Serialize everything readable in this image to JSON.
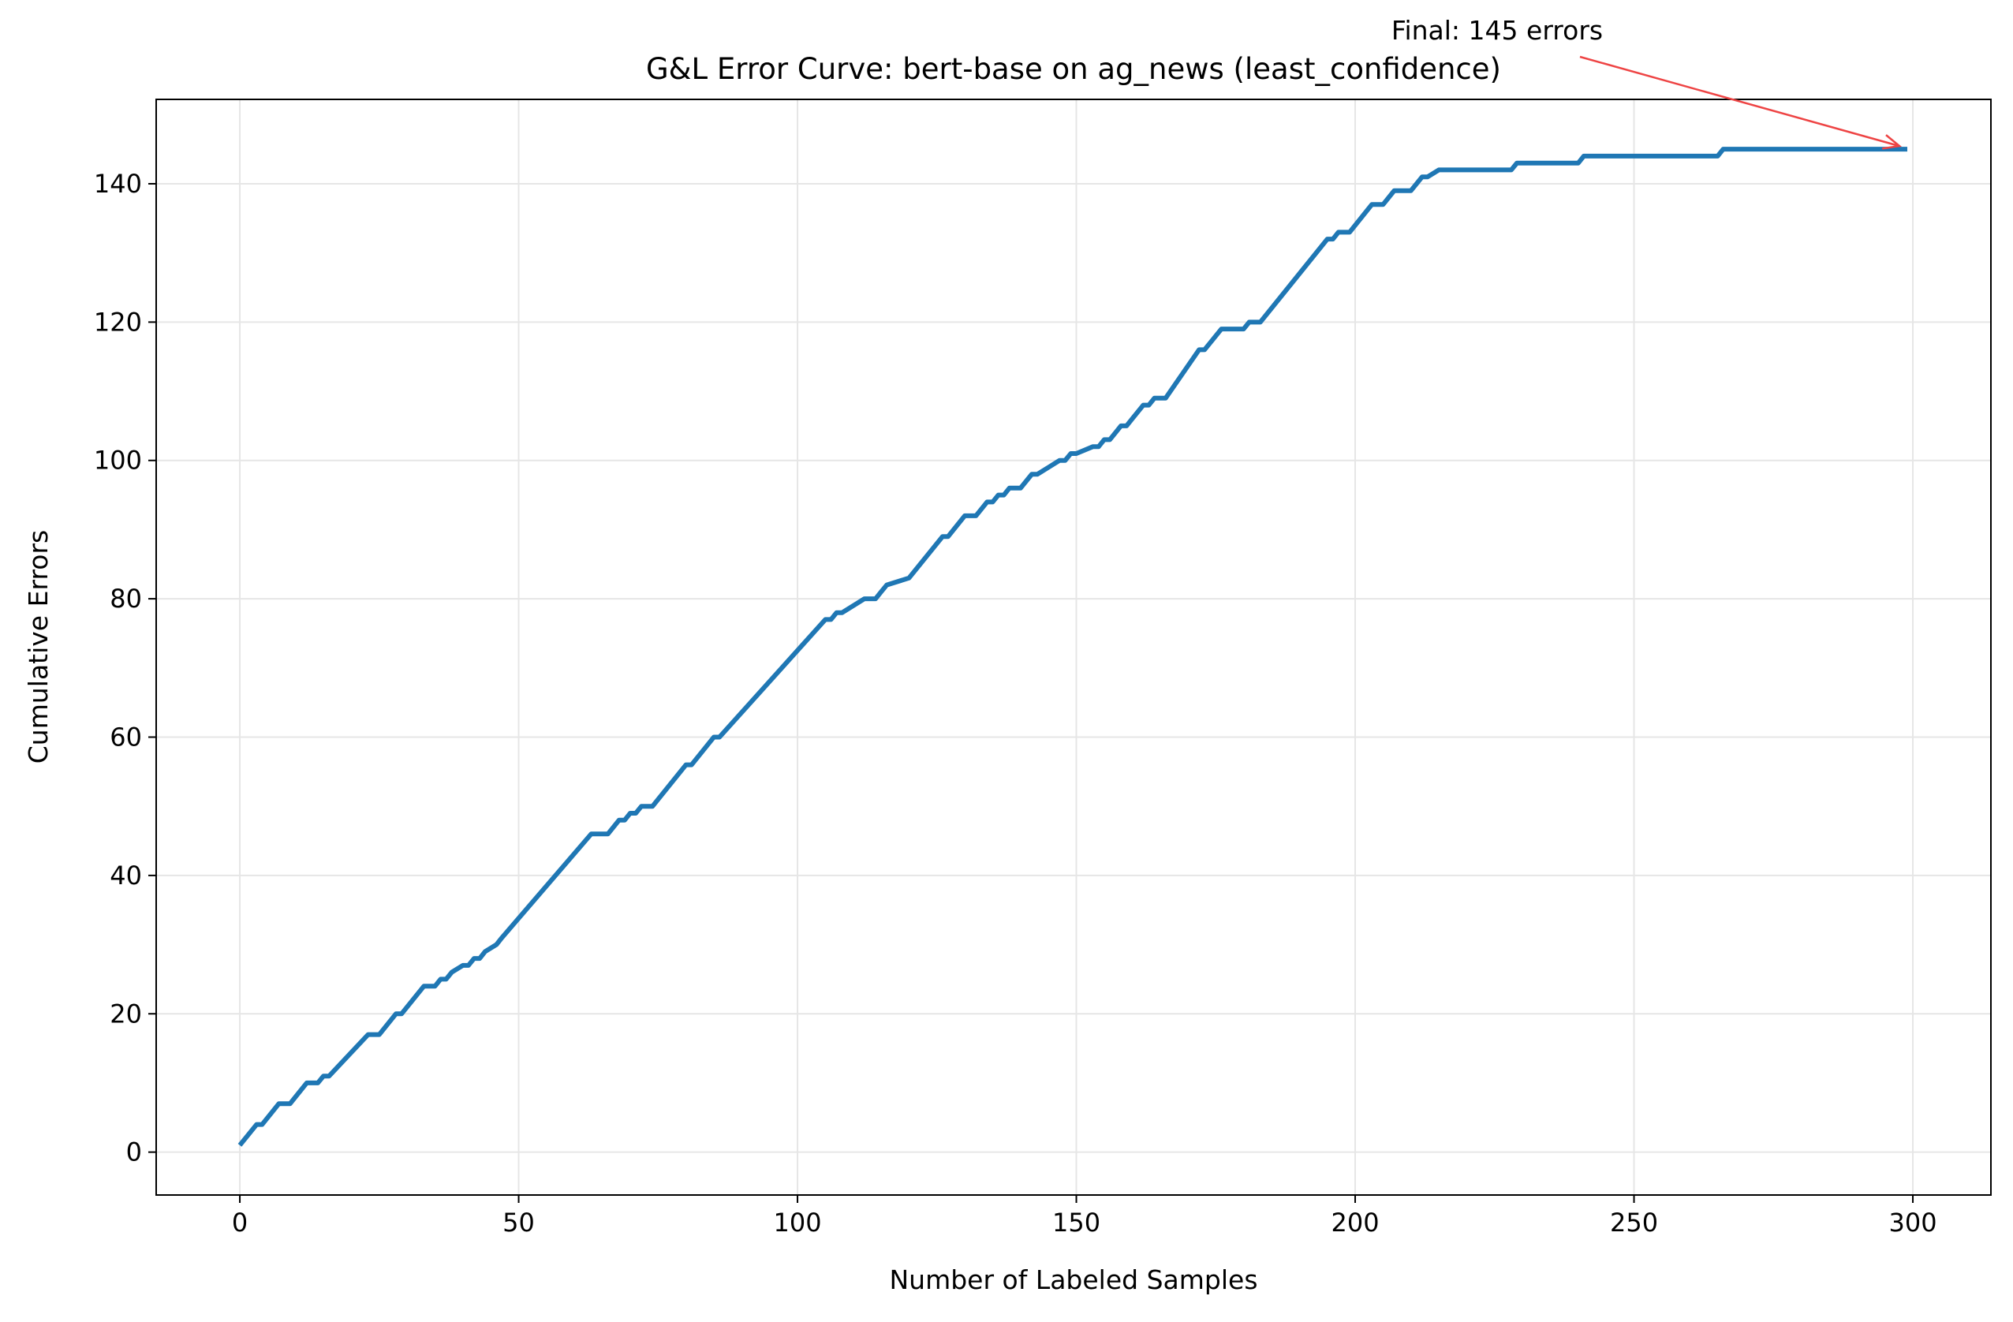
{
  "chart_data": {
    "type": "line",
    "title": "G&L Error Curve: bert-base on ag_news (least_confidence)",
    "xlabel": "Number of Labeled Samples",
    "ylabel": "Cumulative Errors",
    "xlim": [
      -15,
      314
    ],
    "ylim": [
      -6.2,
      152.2
    ],
    "xticks": [
      0,
      50,
      100,
      150,
      200,
      250,
      300
    ],
    "yticks": [
      0,
      20,
      40,
      60,
      80,
      100,
      120,
      140
    ],
    "xtick_labels": [
      "0",
      "50",
      "100",
      "150",
      "200",
      "250",
      "300"
    ],
    "ytick_labels": [
      "0",
      "20",
      "40",
      "60",
      "80",
      "100",
      "120",
      "140"
    ],
    "grid": true,
    "series": [
      {
        "color": "#1f77b4",
        "x": [
          0,
          3,
          4,
          7,
          8,
          9,
          10,
          12,
          14,
          15,
          16,
          23,
          24,
          25,
          28,
          29,
          33,
          34,
          35,
          36,
          37,
          38,
          40,
          41,
          42,
          43,
          44,
          46,
          47,
          63,
          66,
          68,
          69,
          70,
          71,
          72,
          74,
          80,
          81,
          85,
          86,
          105,
          106,
          107,
          108,
          112,
          114,
          115,
          116,
          120,
          126,
          127,
          130,
          132,
          134,
          135,
          136,
          137,
          138,
          140,
          142,
          143,
          145,
          147,
          148,
          149,
          150,
          153,
          154,
          155,
          156,
          157,
          158,
          159,
          160,
          162,
          163,
          164,
          166,
          172,
          173,
          176,
          180,
          181,
          183,
          195,
          196,
          197,
          199,
          203,
          205,
          207,
          208,
          210,
          212,
          213,
          215,
          216,
          218,
          228,
          229,
          240,
          241,
          265,
          266,
          299
        ],
        "y": [
          1,
          4,
          4,
          7,
          7,
          7,
          8,
          10,
          10,
          11,
          11,
          17,
          17,
          17,
          20,
          20,
          24,
          24,
          24,
          25,
          25,
          26,
          27,
          27,
          28,
          28,
          29,
          30,
          31,
          46,
          46,
          48,
          48,
          49,
          49,
          50,
          50,
          56,
          56,
          60,
          60,
          77,
          77,
          78,
          78,
          80,
          80,
          81,
          82,
          83,
          89,
          89,
          92,
          92,
          94,
          94,
          95,
          95,
          96,
          96,
          98,
          98,
          99,
          100,
          100,
          101,
          101,
          102,
          102,
          103,
          103,
          104,
          105,
          105,
          106,
          108,
          108,
          109,
          109,
          116,
          116,
          119,
          119,
          120,
          120,
          132,
          132,
          133,
          133,
          137,
          137,
          139,
          139,
          139,
          141,
          141,
          142,
          142,
          142,
          142,
          143,
          143,
          144,
          144,
          145,
          145
        ]
      }
    ],
    "annotations": [
      {
        "text": "Final: 145 errors",
        "x": 299,
        "y": 145,
        "arrow_color": "#ee4444"
      }
    ]
  }
}
